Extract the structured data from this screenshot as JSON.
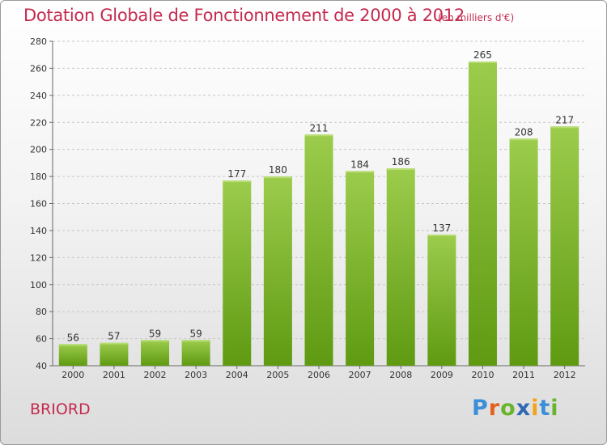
{
  "header": {
    "title": "Dotation Globale de Fonctionnement de 2000 à 2012",
    "unit": "(en milliers d'€)"
  },
  "footer": {
    "commune": "BRIORD"
  },
  "logo": {
    "text": "Proxiti",
    "letters": [
      {
        "ch": "P",
        "color": "#3a8fd8"
      },
      {
        "ch": "r",
        "color": "#e4601b"
      },
      {
        "ch": "o",
        "color": "#6ab42d"
      },
      {
        "ch": "x",
        "color": "#2f68b3"
      },
      {
        "ch": "i",
        "color": "#f2a21c"
      },
      {
        "ch": "t",
        "color": "#3a8fd8"
      },
      {
        "ch": "i",
        "color": "#6ab42d"
      }
    ]
  },
  "colors": {
    "title": "#c42a4e",
    "bar_light": "#9ccc4c",
    "bar_dark": "#5f9a12"
  },
  "chart_data": {
    "type": "bar",
    "title": "Dotation Globale de Fonctionnement de 2000 à 2012",
    "subtitle": "(en milliers d'€)",
    "xlabel": "",
    "ylabel": "",
    "categories": [
      "2000",
      "2001",
      "2002",
      "2003",
      "2004",
      "2005",
      "2006",
      "2007",
      "2008",
      "2009",
      "2010",
      "2011",
      "2012"
    ],
    "values": [
      56,
      57,
      59,
      59,
      177,
      180,
      211,
      184,
      186,
      137,
      265,
      208,
      217
    ],
    "ylim": [
      40,
      280
    ],
    "yticks": [
      40,
      60,
      80,
      100,
      120,
      140,
      160,
      180,
      200,
      220,
      240,
      260,
      280
    ],
    "grid": "horizontal-dashed"
  }
}
